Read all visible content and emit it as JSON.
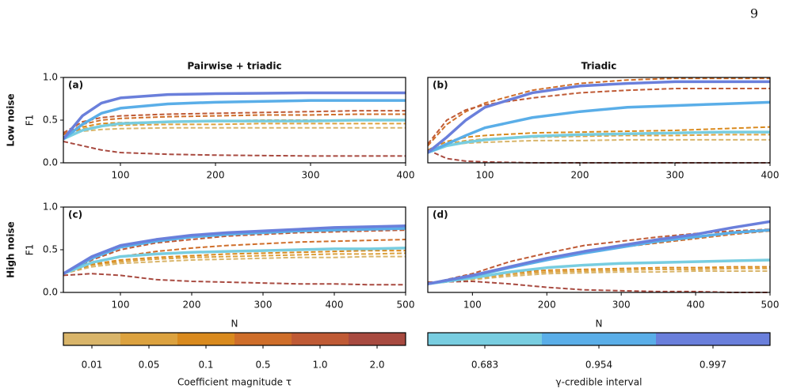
{
  "page_number": "9",
  "column_titles": [
    "Pairwise + triadic",
    "Triadic"
  ],
  "row_labels": [
    "Low noise",
    "High noise"
  ],
  "chart_data": [
    {
      "type": "line",
      "panel_label": "(a)",
      "y_label": "F1",
      "x": [
        40,
        60,
        80,
        100,
        150,
        200,
        250,
        300,
        350,
        400
      ],
      "xlim": [
        40,
        400
      ],
      "xticks": [
        100,
        200,
        300,
        400
      ],
      "ylim": [
        0,
        1
      ],
      "yticks": [
        {
          "value": 0,
          "label": "0.0"
        },
        {
          "value": 0.5,
          "label": "0.5"
        },
        {
          "value": 1,
          "label": "1.0"
        }
      ],
      "series": [
        {
          "color": "#d9b56a",
          "style": "dashed",
          "values": [
            0.3,
            0.37,
            0.39,
            0.4,
            0.41,
            0.41,
            0.41,
            0.41,
            0.41,
            0.41
          ]
        },
        {
          "color": "#dca23f",
          "style": "dashed",
          "values": [
            0.3,
            0.4,
            0.43,
            0.44,
            0.45,
            0.45,
            0.46,
            0.46,
            0.46,
            0.46
          ]
        },
        {
          "color": "#d98a1e",
          "style": "dashed",
          "values": [
            0.3,
            0.42,
            0.46,
            0.47,
            0.48,
            0.49,
            0.5,
            0.5,
            0.5,
            0.5
          ]
        },
        {
          "color": "#cf6e2a",
          "style": "dashed",
          "values": [
            0.33,
            0.45,
            0.5,
            0.52,
            0.54,
            0.55,
            0.56,
            0.56,
            0.57,
            0.57
          ]
        },
        {
          "color": "#bf5a35",
          "style": "dashed",
          "values": [
            0.35,
            0.48,
            0.53,
            0.55,
            0.57,
            0.58,
            0.59,
            0.6,
            0.61,
            0.61
          ]
        },
        {
          "color": "#a84a40",
          "style": "dashed",
          "values": [
            0.25,
            0.2,
            0.15,
            0.12,
            0.1,
            0.09,
            0.085,
            0.08,
            0.08,
            0.08
          ]
        },
        {
          "color": "#78cde0",
          "style": "solid",
          "values": [
            0.28,
            0.38,
            0.43,
            0.46,
            0.48,
            0.49,
            0.49,
            0.49,
            0.5,
            0.5
          ]
        },
        {
          "color": "#5aaee8",
          "style": "solid",
          "values": [
            0.28,
            0.45,
            0.58,
            0.64,
            0.69,
            0.71,
            0.72,
            0.73,
            0.73,
            0.73
          ]
        },
        {
          "color": "#6a7fdb",
          "style": "solid",
          "values": [
            0.28,
            0.55,
            0.7,
            0.76,
            0.8,
            0.81,
            0.815,
            0.82,
            0.82,
            0.82
          ]
        }
      ]
    },
    {
      "type": "line",
      "panel_label": "(b)",
      "x": [
        40,
        60,
        80,
        100,
        150,
        200,
        250,
        300,
        350,
        400
      ],
      "xlim": [
        40,
        400
      ],
      "xticks": [
        100,
        200,
        300,
        400
      ],
      "ylim": [
        0,
        1
      ],
      "series": [
        {
          "color": "#d9b56a",
          "style": "dashed",
          "values": [
            0.12,
            0.2,
            0.23,
            0.24,
            0.26,
            0.26,
            0.27,
            0.27,
            0.27,
            0.27
          ]
        },
        {
          "color": "#dca23f",
          "style": "dashed",
          "values": [
            0.13,
            0.22,
            0.26,
            0.28,
            0.3,
            0.31,
            0.32,
            0.32,
            0.33,
            0.33
          ]
        },
        {
          "color": "#d98a1e",
          "style": "dashed",
          "values": [
            0.15,
            0.25,
            0.3,
            0.32,
            0.35,
            0.36,
            0.37,
            0.38,
            0.4,
            0.42
          ]
        },
        {
          "color": "#cf6e2a",
          "style": "dashed",
          "values": [
            0.2,
            0.45,
            0.6,
            0.7,
            0.85,
            0.93,
            0.97,
            0.99,
            0.99,
            0.99
          ]
        },
        {
          "color": "#bf5a35",
          "style": "dashed",
          "values": [
            0.22,
            0.5,
            0.62,
            0.68,
            0.76,
            0.82,
            0.85,
            0.87,
            0.87,
            0.87
          ]
        },
        {
          "color": "#a84a40",
          "style": "dashed",
          "values": [
            0.15,
            0.05,
            0.02,
            0.01,
            0,
            0,
            0,
            0,
            0,
            0
          ]
        },
        {
          "color": "#78cde0",
          "style": "solid",
          "values": [
            0.12,
            0.2,
            0.24,
            0.27,
            0.31,
            0.33,
            0.34,
            0.35,
            0.36,
            0.36
          ]
        },
        {
          "color": "#5aaee8",
          "style": "solid",
          "values": [
            0.12,
            0.22,
            0.32,
            0.41,
            0.53,
            0.6,
            0.65,
            0.67,
            0.69,
            0.71
          ]
        },
        {
          "color": "#6a7fdb",
          "style": "solid",
          "values": [
            0.12,
            0.3,
            0.5,
            0.65,
            0.82,
            0.9,
            0.93,
            0.95,
            0.95,
            0.95
          ]
        }
      ]
    },
    {
      "type": "line",
      "panel_label": "(c)",
      "y_label": "F1",
      "x_label": "N",
      "x": [
        20,
        60,
        100,
        150,
        200,
        250,
        300,
        350,
        400,
        450,
        500
      ],
      "xlim": [
        20,
        500
      ],
      "xticks": [
        100,
        200,
        300,
        400,
        500
      ],
      "ylim": [
        0,
        1
      ],
      "yticks": [
        {
          "value": 0,
          "label": "0.0"
        },
        {
          "value": 0.5,
          "label": "0.5"
        },
        {
          "value": 1,
          "label": "1.0"
        }
      ],
      "series": [
        {
          "color": "#d9b56a",
          "style": "dashed",
          "values": [
            0.22,
            0.3,
            0.34,
            0.36,
            0.38,
            0.39,
            0.4,
            0.41,
            0.41,
            0.42,
            0.42
          ]
        },
        {
          "color": "#dca23f",
          "style": "dashed",
          "values": [
            0.22,
            0.32,
            0.36,
            0.39,
            0.41,
            0.42,
            0.43,
            0.44,
            0.45,
            0.45,
            0.46
          ]
        },
        {
          "color": "#d98a1e",
          "style": "dashed",
          "values": [
            0.22,
            0.33,
            0.38,
            0.41,
            0.43,
            0.45,
            0.46,
            0.47,
            0.48,
            0.49,
            0.49
          ]
        },
        {
          "color": "#cf6e2a",
          "style": "dashed",
          "values": [
            0.22,
            0.35,
            0.42,
            0.48,
            0.52,
            0.55,
            0.57,
            0.59,
            0.6,
            0.61,
            0.62
          ]
        },
        {
          "color": "#bf5a35",
          "style": "dashed",
          "values": [
            0.22,
            0.38,
            0.5,
            0.58,
            0.62,
            0.66,
            0.68,
            0.7,
            0.71,
            0.72,
            0.73
          ]
        },
        {
          "color": "#a84a40",
          "style": "dashed",
          "values": [
            0.2,
            0.22,
            0.2,
            0.15,
            0.13,
            0.12,
            0.11,
            0.1,
            0.1,
            0.09,
            0.09
          ]
        },
        {
          "color": "#78cde0",
          "style": "solid",
          "values": [
            0.22,
            0.35,
            0.42,
            0.45,
            0.47,
            0.48,
            0.49,
            0.5,
            0.51,
            0.51,
            0.52
          ]
        },
        {
          "color": "#5aaee8",
          "style": "solid",
          "values": [
            0.22,
            0.4,
            0.53,
            0.6,
            0.65,
            0.68,
            0.7,
            0.72,
            0.73,
            0.74,
            0.75
          ]
        },
        {
          "color": "#6a7fdb",
          "style": "solid",
          "values": [
            0.22,
            0.42,
            0.55,
            0.62,
            0.67,
            0.7,
            0.72,
            0.74,
            0.76,
            0.77,
            0.78
          ]
        }
      ]
    },
    {
      "type": "line",
      "panel_label": "(d)",
      "x_label": "N",
      "x": [
        40,
        100,
        150,
        200,
        250,
        300,
        350,
        400,
        450,
        500
      ],
      "xlim": [
        40,
        500
      ],
      "xticks": [
        100,
        200,
        300,
        400,
        500
      ],
      "ylim": [
        0,
        1
      ],
      "series": [
        {
          "color": "#d9b56a",
          "style": "dashed",
          "values": [
            0.1,
            0.15,
            0.19,
            0.22,
            0.23,
            0.24,
            0.24,
            0.25,
            0.25,
            0.25
          ]
        },
        {
          "color": "#dca23f",
          "style": "dashed",
          "values": [
            0.1,
            0.16,
            0.21,
            0.24,
            0.25,
            0.26,
            0.27,
            0.27,
            0.28,
            0.28
          ]
        },
        {
          "color": "#d98a1e",
          "style": "dashed",
          "values": [
            0.1,
            0.17,
            0.23,
            0.26,
            0.27,
            0.28,
            0.29,
            0.29,
            0.3,
            0.3
          ]
        },
        {
          "color": "#cf6e2a",
          "style": "dashed",
          "values": [
            0.1,
            0.2,
            0.3,
            0.4,
            0.46,
            0.53,
            0.58,
            0.63,
            0.68,
            0.72
          ]
        },
        {
          "color": "#bf5a35",
          "style": "dashed",
          "values": [
            0.1,
            0.22,
            0.36,
            0.46,
            0.55,
            0.6,
            0.65,
            0.69,
            0.72,
            0.74
          ]
        },
        {
          "color": "#a84a40",
          "style": "dashed",
          "values": [
            0.12,
            0.13,
            0.1,
            0.06,
            0.03,
            0.02,
            0.01,
            0.01,
            0,
            0
          ]
        },
        {
          "color": "#78cde0",
          "style": "solid",
          "values": [
            0.1,
            0.17,
            0.24,
            0.29,
            0.32,
            0.34,
            0.35,
            0.36,
            0.37,
            0.38
          ]
        },
        {
          "color": "#5aaee8",
          "style": "solid",
          "values": [
            0.1,
            0.19,
            0.29,
            0.38,
            0.46,
            0.53,
            0.6,
            0.65,
            0.7,
            0.73
          ]
        },
        {
          "color": "#6a7fdb",
          "style": "solid",
          "values": [
            0.1,
            0.2,
            0.3,
            0.4,
            0.48,
            0.55,
            0.62,
            0.68,
            0.76,
            0.83
          ]
        }
      ]
    }
  ],
  "colorbars": [
    {
      "label": "Coefficient magnitude τ",
      "colors": [
        "#d9b56a",
        "#dca23f",
        "#d98a1e",
        "#cf6e2a",
        "#bf5a35",
        "#a84a40"
      ],
      "ticks": [
        "0.01",
        "0.05",
        "0.1",
        "0.5",
        "1.0",
        "2.0"
      ]
    },
    {
      "label": "γ-credible interval",
      "colors": [
        "#78cde0",
        "#5aaee8",
        "#6a7fdb"
      ],
      "ticks": [
        "0.683",
        "0.954",
        "0.997"
      ]
    }
  ]
}
